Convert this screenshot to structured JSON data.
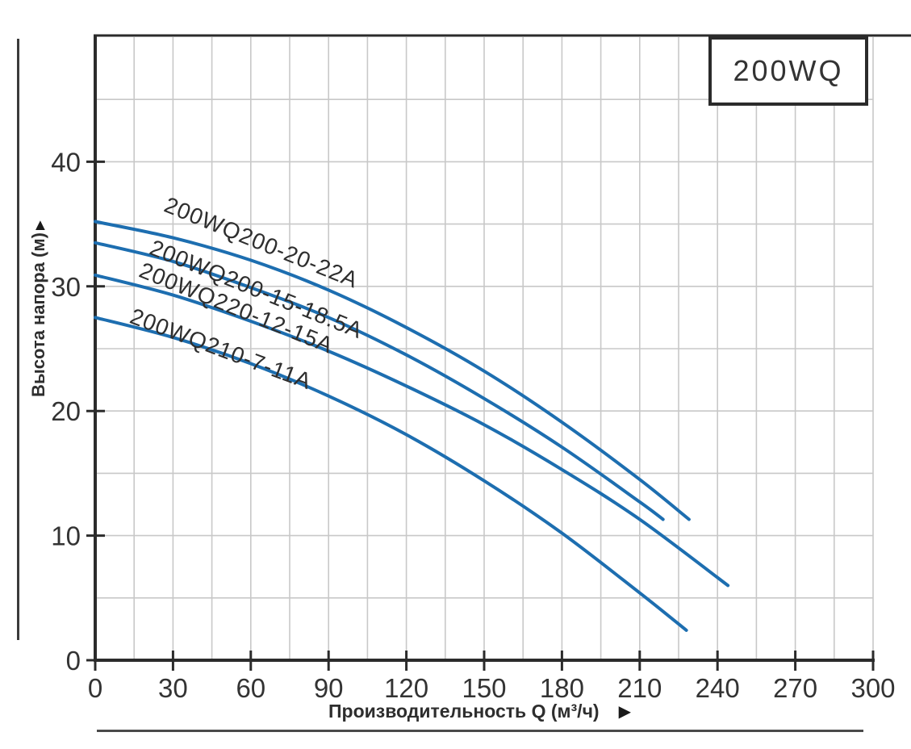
{
  "page": {
    "background": "#ffffff"
  },
  "model_box": {
    "label": "200WQ"
  },
  "axis_icons": {
    "y_axis_arrow": "▲",
    "x_axis_arrow": "▶"
  },
  "chart_data": {
    "type": "line",
    "title": "",
    "xlabel": "Производительность Q (м³/ч)",
    "ylabel": "Высота напора (м)",
    "xlim": [
      0,
      300
    ],
    "ylim": [
      0,
      50
    ],
    "x_minor_step": 15,
    "y_minor_step": 5,
    "x_ticks": [
      0,
      30,
      60,
      90,
      120,
      150,
      180,
      210,
      240,
      270,
      300
    ],
    "y_ticks": [
      0,
      10,
      20,
      30,
      40
    ],
    "grid": true,
    "legend_position": "labels-on-curves",
    "colors": {
      "curve": "#1d6eb0",
      "grid": "#c8c8c8",
      "axis": "#2b2b2b",
      "text": "#333333"
    },
    "series": [
      {
        "name": "200WQ200-20-22A",
        "x": [
          0,
          30,
          60,
          90,
          120,
          150,
          180,
          210,
          229
        ],
        "y": [
          35.2,
          33.9,
          32.1,
          29.7,
          26.7,
          23.2,
          19.1,
          14.5,
          11.3
        ]
      },
      {
        "name": "200WQ200-15-18.5A",
        "x": [
          0,
          30,
          60,
          90,
          120,
          150,
          180,
          210,
          219
        ],
        "y": [
          33.5,
          32.0,
          29.9,
          27.5,
          24.5,
          21.0,
          17.1,
          12.7,
          11.3
        ]
      },
      {
        "name": "200WQ220-12-15A",
        "x": [
          0,
          30,
          60,
          90,
          120,
          150,
          180,
          210,
          244
        ],
        "y": [
          30.9,
          29.3,
          27.2,
          24.8,
          22.0,
          18.9,
          15.3,
          11.3,
          6.0
        ]
      },
      {
        "name": "200WQ210-7-11A",
        "x": [
          0,
          30,
          60,
          90,
          120,
          150,
          180,
          210,
          228
        ],
        "y": [
          27.5,
          25.9,
          23.8,
          21.2,
          18.1,
          14.4,
          10.2,
          5.4,
          2.4
        ]
      }
    ]
  }
}
